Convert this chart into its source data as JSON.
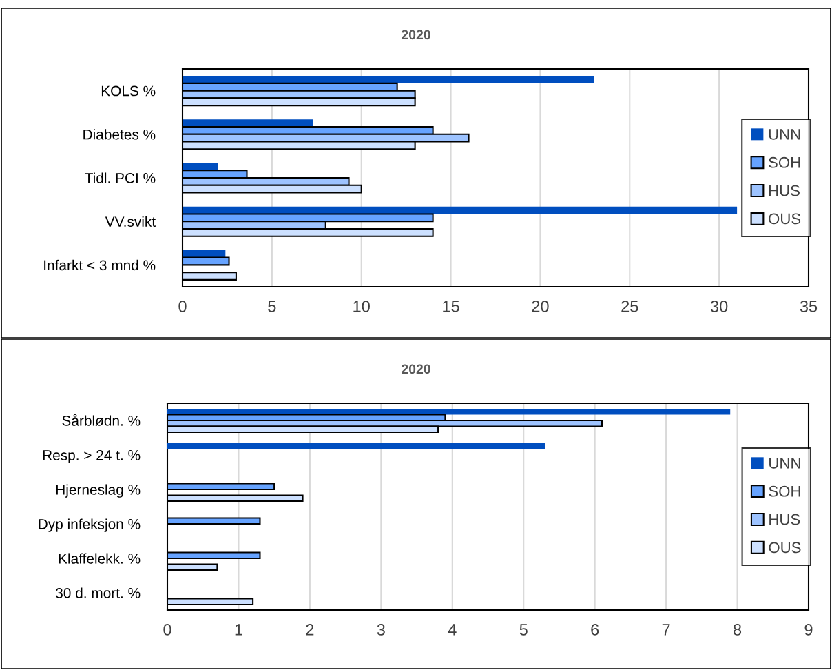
{
  "chart_data": [
    {
      "type": "bar",
      "orientation": "horizontal",
      "title": "2020",
      "categories": [
        "KOLS %",
        "Diabetes %",
        "Tidl. PCI %",
        "VV.svikt",
        "Infarkt < 3 mnd %"
      ],
      "series": [
        {
          "name": "UNN",
          "color": "#004ebf",
          "values": [
            23,
            7.3,
            2,
            31,
            2.4
          ]
        },
        {
          "name": "SOH",
          "color": "#66a3ff",
          "values": [
            12,
            14,
            3.6,
            14,
            2.6
          ]
        },
        {
          "name": "HUS",
          "color": "#9dc3ff",
          "values": [
            13,
            16,
            9.3,
            8,
            null
          ]
        },
        {
          "name": "OUS",
          "color": "#cce0ff",
          "values": [
            13,
            13,
            10,
            14,
            3
          ]
        }
      ],
      "xlim": [
        0,
        35
      ],
      "xticks": [
        0,
        5,
        10,
        15,
        20,
        25,
        30,
        35
      ],
      "grid": "x",
      "legend": "right"
    },
    {
      "type": "bar",
      "orientation": "horizontal",
      "title": "2020",
      "categories": [
        "Sårblødn. %",
        "Resp. > 24 t. %",
        "Hjerneslag %",
        "Dyp infeksjon %",
        "Klaffelekk. %",
        "30 d. mort. %"
      ],
      "series": [
        {
          "name": "UNN",
          "color": "#004ebf",
          "values": [
            7.9,
            5.3,
            null,
            null,
            null,
            null
          ]
        },
        {
          "name": "SOH",
          "color": "#66a3ff",
          "values": [
            3.9,
            null,
            1.5,
            1.3,
            1.3,
            null
          ]
        },
        {
          "name": "HUS",
          "color": "#9dc3ff",
          "values": [
            6.1,
            null,
            null,
            null,
            null,
            null
          ]
        },
        {
          "name": "OUS",
          "color": "#cce0ff",
          "values": [
            3.8,
            null,
            1.9,
            null,
            0.7,
            1.2
          ]
        }
      ],
      "xlim": [
        0,
        9
      ],
      "xticks": [
        0,
        1,
        2,
        3,
        4,
        5,
        6,
        7,
        8,
        9
      ],
      "grid": "x",
      "legend": "right"
    }
  ]
}
